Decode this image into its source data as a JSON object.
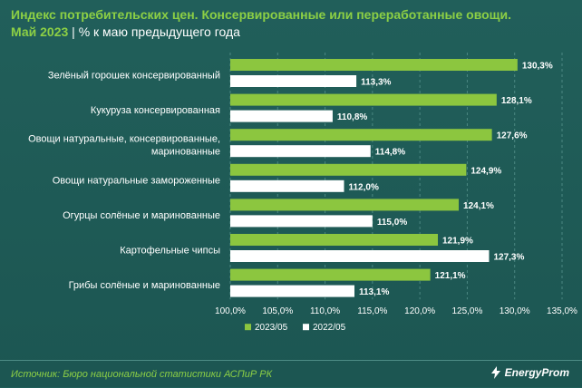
{
  "header": {
    "title_line1": "Индекс потребительских цен. Консервированные или переработанные овощи.",
    "title_line2": "Май 2023",
    "separator": "|",
    "unit_text": "% к маю предыдущего года"
  },
  "footer": {
    "source": "Источник: Бюро национальной статистики АСПиР РК",
    "logo_text": "EnergyProm"
  },
  "colors": {
    "series_2023": "#8cc63f",
    "series_2022": "#ffffff",
    "background": "#1f5e59"
  },
  "chart_data": {
    "type": "bar",
    "orientation": "horizontal",
    "categories": [
      [
        "Зелёный горошек консервированный"
      ],
      [
        "Кукуруза консервированная"
      ],
      [
        "Овощи натуральные, консервированные,",
        "маринованные"
      ],
      [
        "Овощи натуральные замороженные"
      ],
      [
        "Огурцы солёные и маринованные"
      ],
      [
        "Картофельные чипсы"
      ],
      [
        "Грибы солёные и маринованные"
      ]
    ],
    "series": [
      {
        "name": "2023/05",
        "values": [
          130.3,
          128.1,
          127.6,
          124.9,
          124.1,
          121.9,
          121.1
        ],
        "labels": [
          "130,3%",
          "128,1%",
          "127,6%",
          "124,9%",
          "124,1%",
          "121,9%",
          "121,1%"
        ]
      },
      {
        "name": "2022/05",
        "values": [
          113.3,
          110.8,
          114.8,
          112.0,
          115.0,
          127.3,
          113.1
        ],
        "labels": [
          "113,3%",
          "110,8%",
          "114,8%",
          "112,0%",
          "115,0%",
          "127,3%",
          "113,1%"
        ]
      }
    ],
    "xlim": [
      100,
      135
    ],
    "ticks": [
      100,
      105,
      110,
      115,
      120,
      125,
      130,
      135
    ],
    "tick_labels": [
      "100,0%",
      "105,0%",
      "110,0%",
      "115,0%",
      "120,0%",
      "125,0%",
      "130,0%",
      "135,0%"
    ],
    "legend_position": "bottom",
    "grid": "vertical"
  }
}
